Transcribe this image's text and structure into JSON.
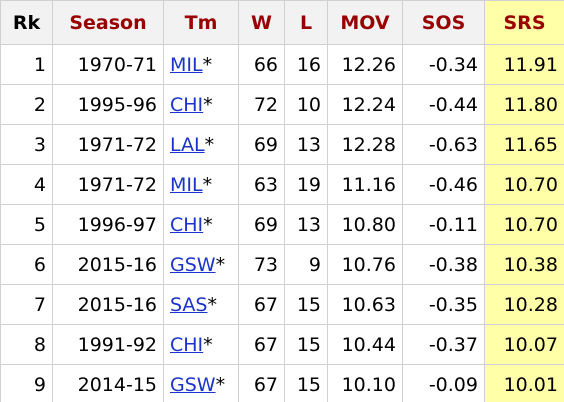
{
  "table": {
    "header": [
      "Rk",
      "Season",
      "Tm",
      "W",
      "L",
      "MOV",
      "SOS",
      "SRS"
    ],
    "rows": [
      {
        "rk": "1",
        "season": "1970-71",
        "tm": "MIL",
        "flag": "*",
        "w": "66",
        "l": "16",
        "mov": "12.26",
        "sos": "-0.34",
        "srs": "11.91"
      },
      {
        "rk": "2",
        "season": "1995-96",
        "tm": "CHI",
        "flag": "*",
        "w": "72",
        "l": "10",
        "mov": "12.24",
        "sos": "-0.44",
        "srs": "11.80"
      },
      {
        "rk": "3",
        "season": "1971-72",
        "tm": "LAL",
        "flag": "*",
        "w": "69",
        "l": "13",
        "mov": "12.28",
        "sos": "-0.63",
        "srs": "11.65"
      },
      {
        "rk": "4",
        "season": "1971-72",
        "tm": "MIL",
        "flag": "*",
        "w": "63",
        "l": "19",
        "mov": "11.16",
        "sos": "-0.46",
        "srs": "10.70"
      },
      {
        "rk": "5",
        "season": "1996-97",
        "tm": "CHI",
        "flag": "*",
        "w": "69",
        "l": "13",
        "mov": "10.80",
        "sos": "-0.11",
        "srs": "10.70"
      },
      {
        "rk": "6",
        "season": "2015-16",
        "tm": "GSW",
        "flag": "*",
        "w": "73",
        "l": "9",
        "mov": "10.76",
        "sos": "-0.38",
        "srs": "10.38"
      },
      {
        "rk": "7",
        "season": "2015-16",
        "tm": "SAS",
        "flag": "*",
        "w": "67",
        "l": "15",
        "mov": "10.63",
        "sos": "-0.35",
        "srs": "10.28"
      },
      {
        "rk": "8",
        "season": "1991-92",
        "tm": "CHI",
        "flag": "*",
        "w": "67",
        "l": "15",
        "mov": "10.44",
        "sos": "-0.37",
        "srs": "10.07"
      },
      {
        "rk": "9",
        "season": "2014-15",
        "tm": "GSW",
        "flag": "*",
        "w": "67",
        "l": "15",
        "mov": "10.10",
        "sos": "-0.09",
        "srs": "10.01"
      }
    ]
  }
}
